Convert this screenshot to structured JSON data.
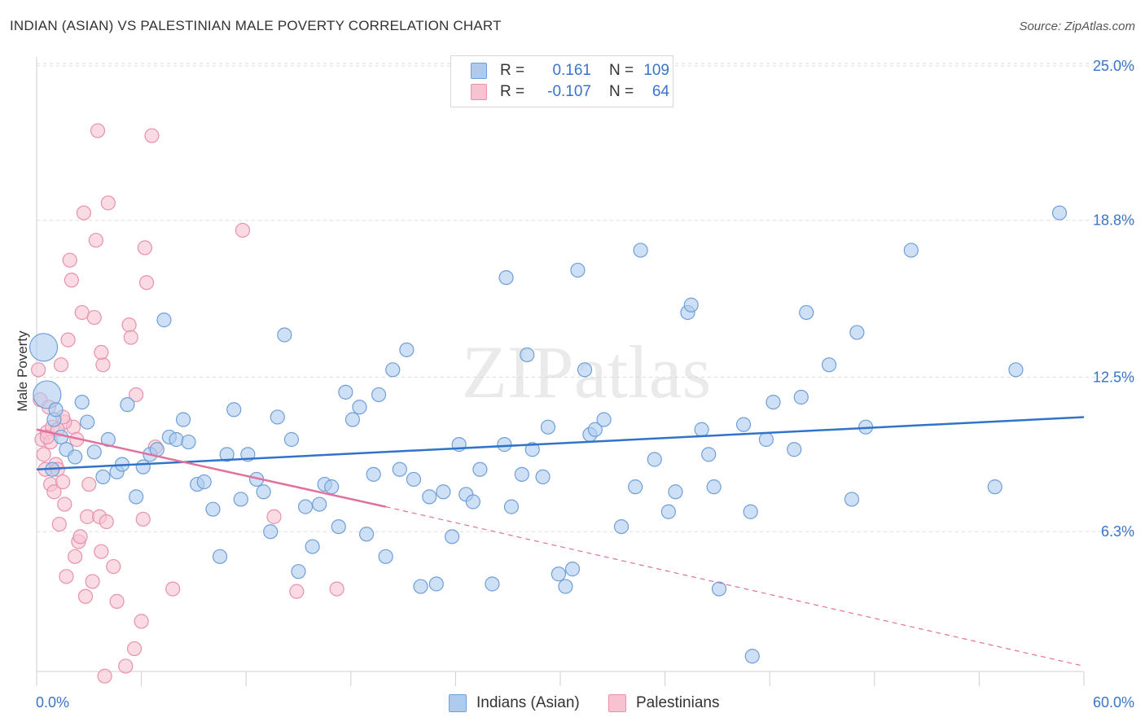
{
  "title": "INDIAN (ASIAN) VS PALESTINIAN MALE POVERTY CORRELATION CHART",
  "source": "Source: ZipAtlas.com",
  "watermark": "ZIPatlas",
  "colors": {
    "blue_fill": "#aecbee",
    "blue_stroke": "#6f9fd8",
    "blue_line": "#2f74c8",
    "pink_fill": "#f7c3d2",
    "pink_stroke": "#e891ab",
    "pink_line": "#e3709a",
    "tick_label": "#3a74c8",
    "grid": "#dddddd"
  },
  "legend_top": [
    {
      "r_label": "R =",
      "r_value": "0.161",
      "n_label": "N =",
      "n_value": "109",
      "color": "#aecbee"
    },
    {
      "r_label": "R =",
      "r_value": "-0.107",
      "n_label": "N =",
      "n_value": "64",
      "color": "#f7c3d2"
    }
  ],
  "legend_bottom": [
    "Indians (Asian)",
    "Palestinians"
  ],
  "chart_data": {
    "type": "scatter",
    "title": "INDIAN (ASIAN) VS PALESTINIAN MALE POVERTY CORRELATION CHART",
    "xlabel": "",
    "ylabel": "Male Poverty",
    "xlim": [
      0,
      60
    ],
    "ylim": [
      0,
      26
    ],
    "x_tick_labels": [
      "0.0%",
      "60.0%"
    ],
    "y_ticks": [
      6.3,
      12.5,
      18.8,
      25.0
    ],
    "y_tick_labels": [
      "6.3%",
      "12.5%",
      "18.8%",
      "25.0%"
    ],
    "grid": "horizontal dashed",
    "legend_position": "top-center",
    "series": [
      {
        "name": "Indians (Asian)",
        "color": "#aecbee",
        "trend": {
          "x": [
            0,
            60
          ],
          "y": [
            8.8,
            10.9
          ]
        },
        "points": [
          [
            0.4,
            13.7
          ],
          [
            0.6,
            11.8
          ],
          [
            0.9,
            8.8
          ],
          [
            1.0,
            10.8
          ],
          [
            1.1,
            11.2
          ],
          [
            1.4,
            10.1
          ],
          [
            1.7,
            9.6
          ],
          [
            2.2,
            9.3
          ],
          [
            2.6,
            11.5
          ],
          [
            2.9,
            10.7
          ],
          [
            3.3,
            9.5
          ],
          [
            3.8,
            8.5
          ],
          [
            4.1,
            10.0
          ],
          [
            4.6,
            8.7
          ],
          [
            4.9,
            9.0
          ],
          [
            5.2,
            11.4
          ],
          [
            5.7,
            7.7
          ],
          [
            6.1,
            8.9
          ],
          [
            6.5,
            9.4
          ],
          [
            6.9,
            9.6
          ],
          [
            7.3,
            14.8
          ],
          [
            7.6,
            10.1
          ],
          [
            8.0,
            10.0
          ],
          [
            8.4,
            10.8
          ],
          [
            8.7,
            9.9
          ],
          [
            9.2,
            8.2
          ],
          [
            9.6,
            8.3
          ],
          [
            10.1,
            7.2
          ],
          [
            10.5,
            5.3
          ],
          [
            10.9,
            9.4
          ],
          [
            11.3,
            11.2
          ],
          [
            11.7,
            7.6
          ],
          [
            12.1,
            9.4
          ],
          [
            12.6,
            8.4
          ],
          [
            13.0,
            7.9
          ],
          [
            13.4,
            6.3
          ],
          [
            13.8,
            10.9
          ],
          [
            14.2,
            14.2
          ],
          [
            14.6,
            10.0
          ],
          [
            15.0,
            4.7
          ],
          [
            15.4,
            7.3
          ],
          [
            15.8,
            5.7
          ],
          [
            16.2,
            7.4
          ],
          [
            16.5,
            8.2
          ],
          [
            16.9,
            8.1
          ],
          [
            17.3,
            6.5
          ],
          [
            17.7,
            11.9
          ],
          [
            18.1,
            10.8
          ],
          [
            18.5,
            11.3
          ],
          [
            18.9,
            6.2
          ],
          [
            19.3,
            8.6
          ],
          [
            19.6,
            11.8
          ],
          [
            20.0,
            5.3
          ],
          [
            20.4,
            12.8
          ],
          [
            20.8,
            8.8
          ],
          [
            21.2,
            13.6
          ],
          [
            21.6,
            8.4
          ],
          [
            22.0,
            4.1
          ],
          [
            22.5,
            7.7
          ],
          [
            22.9,
            4.2
          ],
          [
            23.3,
            7.9
          ],
          [
            23.8,
            6.1
          ],
          [
            24.2,
            9.8
          ],
          [
            24.6,
            7.8
          ],
          [
            25.0,
            7.5
          ],
          [
            25.4,
            8.8
          ],
          [
            26.1,
            4.2
          ],
          [
            26.8,
            9.8
          ],
          [
            26.9,
            16.5
          ],
          [
            27.2,
            7.3
          ],
          [
            27.8,
            8.6
          ],
          [
            28.1,
            13.4
          ],
          [
            28.4,
            9.6
          ],
          [
            29.0,
            8.5
          ],
          [
            29.3,
            10.5
          ],
          [
            29.9,
            4.6
          ],
          [
            30.3,
            4.1
          ],
          [
            30.7,
            4.8
          ],
          [
            31.0,
            16.8
          ],
          [
            31.4,
            12.8
          ],
          [
            31.7,
            10.2
          ],
          [
            32.0,
            10.4
          ],
          [
            32.5,
            10.8
          ],
          [
            33.5,
            6.5
          ],
          [
            34.3,
            8.1
          ],
          [
            34.6,
            17.6
          ],
          [
            35.4,
            9.2
          ],
          [
            36.2,
            7.1
          ],
          [
            36.6,
            7.9
          ],
          [
            37.3,
            15.1
          ],
          [
            37.5,
            15.4
          ],
          [
            38.1,
            10.4
          ],
          [
            38.5,
            9.4
          ],
          [
            38.8,
            8.1
          ],
          [
            39.1,
            4.0
          ],
          [
            40.5,
            10.6
          ],
          [
            40.9,
            7.1
          ],
          [
            41.0,
            1.3
          ],
          [
            41.8,
            10.0
          ],
          [
            42.2,
            11.5
          ],
          [
            43.4,
            9.6
          ],
          [
            43.8,
            11.7
          ],
          [
            44.1,
            15.1
          ],
          [
            45.4,
            13.0
          ],
          [
            46.7,
            7.6
          ],
          [
            47.0,
            14.3
          ],
          [
            47.5,
            10.5
          ],
          [
            50.1,
            17.6
          ],
          [
            54.9,
            8.1
          ],
          [
            56.1,
            12.8
          ],
          [
            58.6,
            19.1
          ]
        ],
        "sizes": {
          "0.4,13.7": "large",
          "0.6,11.8": "large"
        }
      },
      {
        "name": "Palestinians",
        "color": "#f7c3d2",
        "trend": {
          "x": [
            0,
            20
          ],
          "y": [
            10.4,
            7.3
          ],
          "dashed_extension": {
            "x": [
              20,
              60
            ],
            "y": [
              7.3,
              0.9
            ]
          }
        },
        "points": [
          [
            0.1,
            12.8
          ],
          [
            0.2,
            11.6
          ],
          [
            0.3,
            10.0
          ],
          [
            0.4,
            9.4
          ],
          [
            0.5,
            8.8
          ],
          [
            0.6,
            10.3
          ],
          [
            0.7,
            11.3
          ],
          [
            0.8,
            8.2
          ],
          [
            0.9,
            10.5
          ],
          [
            1.0,
            7.9
          ],
          [
            1.1,
            9.0
          ],
          [
            1.2,
            8.8
          ],
          [
            1.3,
            6.6
          ],
          [
            1.4,
            13.0
          ],
          [
            1.5,
            8.3
          ],
          [
            1.6,
            7.4
          ],
          [
            1.7,
            4.5
          ],
          [
            1.8,
            14.0
          ],
          [
            1.9,
            17.2
          ],
          [
            2.0,
            16.4
          ],
          [
            2.1,
            10.5
          ],
          [
            2.2,
            5.3
          ],
          [
            2.4,
            5.9
          ],
          [
            2.5,
            6.1
          ],
          [
            2.6,
            15.1
          ],
          [
            2.7,
            19.1
          ],
          [
            2.8,
            3.7
          ],
          [
            2.9,
            6.9
          ],
          [
            3.0,
            8.2
          ],
          [
            3.2,
            4.3
          ],
          [
            3.3,
            14.9
          ],
          [
            3.4,
            18.0
          ],
          [
            3.5,
            22.4
          ],
          [
            3.6,
            6.9
          ],
          [
            3.7,
            5.5
          ],
          [
            3.8,
            13.0
          ],
          [
            3.9,
            0.5
          ],
          [
            4.0,
            6.7
          ],
          [
            4.1,
            19.5
          ],
          [
            4.4,
            4.9
          ],
          [
            4.6,
            3.5
          ],
          [
            5.1,
            0.9
          ],
          [
            5.3,
            14.6
          ],
          [
            5.4,
            14.1
          ],
          [
            5.6,
            1.6
          ],
          [
            5.7,
            11.8
          ],
          [
            6.0,
            2.7
          ],
          [
            6.1,
            6.8
          ],
          [
            6.2,
            17.7
          ],
          [
            6.3,
            16.3
          ],
          [
            6.6,
            22.2
          ],
          [
            6.8,
            9.7
          ],
          [
            7.8,
            4.0
          ],
          [
            13.6,
            6.9
          ],
          [
            14.9,
            3.9
          ],
          [
            17.2,
            4.0
          ],
          [
            11.8,
            18.4
          ],
          [
            1.6,
            10.7
          ],
          [
            1.2,
            10.4
          ],
          [
            2.3,
            10.0
          ],
          [
            0.8,
            9.9
          ],
          [
            0.6,
            10.1
          ],
          [
            3.7,
            13.5
          ],
          [
            1.5,
            10.9
          ]
        ]
      }
    ]
  }
}
